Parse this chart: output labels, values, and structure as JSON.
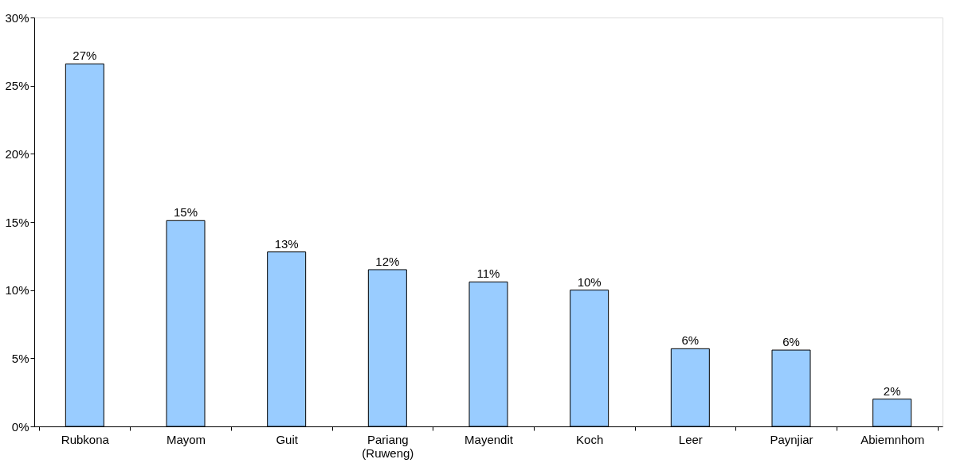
{
  "chart_data": {
    "type": "bar",
    "categories": [
      "Rubkona",
      "Mayom",
      "Guit",
      "Pariang (Ruweng)",
      "Mayendit",
      "Koch",
      "Leer",
      "Paynjiar",
      "Abiemnhom"
    ],
    "values": [
      26.6,
      15.1,
      12.8,
      11.5,
      10.6,
      10.0,
      5.7,
      5.6,
      2.0
    ],
    "value_labels": [
      "27%",
      "15%",
      "13%",
      "12%",
      "11%",
      "10%",
      "6%",
      "6%",
      "2%"
    ],
    "color": "#99ccff",
    "ylim": [
      0,
      30
    ],
    "yticks": [
      {
        "value": 0,
        "label": "0%"
      },
      {
        "value": 5,
        "label": "5%"
      },
      {
        "value": 10,
        "label": "10%"
      },
      {
        "value": 15,
        "label": "15%"
      },
      {
        "value": 20,
        "label": "20%"
      },
      {
        "value": 25,
        "label": "25%"
      },
      {
        "value": 30,
        "label": "30%"
      }
    ],
    "grid": false
  }
}
